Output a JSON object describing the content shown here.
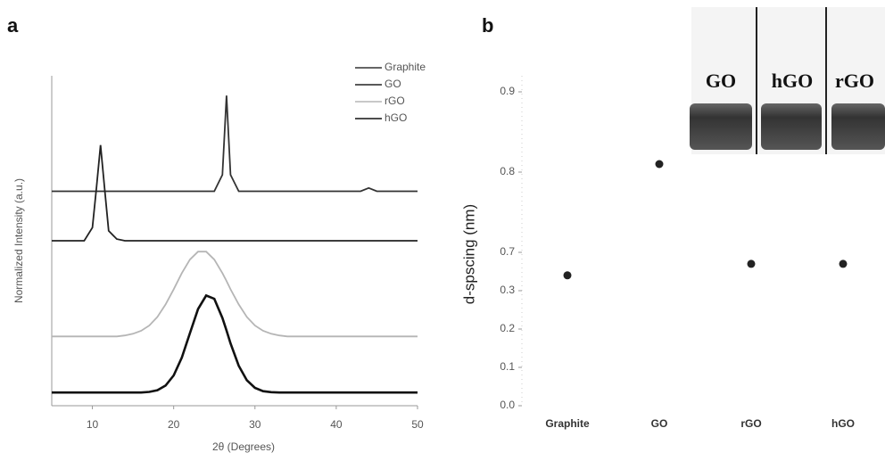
{
  "chart_data": [
    {
      "type": "line",
      "panel_label": "a",
      "xlabel": "2θ (Degrees)",
      "ylabel": "Normalized Intensity (a.u.)",
      "x": [
        5,
        6,
        7,
        8,
        9,
        10,
        10.5,
        11,
        11.5,
        12,
        13,
        14,
        15,
        16,
        17,
        18,
        19,
        20,
        21,
        22,
        23,
        24,
        25,
        26,
        26.5,
        27,
        28,
        29,
        30,
        31,
        32,
        33,
        34,
        35,
        36,
        37,
        38,
        39,
        40,
        41,
        42,
        43,
        44,
        45,
        46,
        47,
        48,
        49,
        50
      ],
      "xlim": [
        5,
        50
      ],
      "xticks": [
        10,
        20,
        30,
        40,
        50
      ],
      "ylim": [
        0,
        10
      ],
      "legend": "upper right",
      "series": [
        {
          "name": "Graphite",
          "color": "#333333",
          "values": [
            6.5,
            6.5,
            6.5,
            6.5,
            6.5,
            6.5,
            6.5,
            6.5,
            6.5,
            6.5,
            6.5,
            6.5,
            6.5,
            6.5,
            6.5,
            6.5,
            6.5,
            6.5,
            6.5,
            6.5,
            6.5,
            6.5,
            6.5,
            7.0,
            9.4,
            7.0,
            6.5,
            6.5,
            6.5,
            6.5,
            6.5,
            6.5,
            6.5,
            6.5,
            6.5,
            6.5,
            6.5,
            6.5,
            6.5,
            6.5,
            6.5,
            6.5,
            6.6,
            6.5,
            6.5,
            6.5,
            6.5,
            6.5,
            6.5
          ]
        },
        {
          "name": "GO",
          "color": "#222222",
          "values": [
            5.0,
            5.0,
            5.0,
            5.0,
            5.0,
            5.4,
            6.6,
            7.9,
            6.6,
            5.3,
            5.05,
            5.0,
            5.0,
            5.0,
            5.0,
            5.0,
            5.0,
            5.0,
            5.0,
            5.0,
            5.0,
            5.0,
            5.0,
            5.0,
            5.0,
            5.0,
            5.0,
            5.0,
            5.0,
            5.0,
            5.0,
            5.0,
            5.0,
            5.0,
            5.0,
            5.0,
            5.0,
            5.0,
            5.0,
            5.0,
            5.0,
            5.0,
            5.0,
            5.0,
            5.0,
            5.0,
            5.0,
            5.0,
            5.0
          ]
        },
        {
          "name": "rGO",
          "color": "#b5b5b5",
          "values": [
            2.1,
            2.1,
            2.1,
            2.1,
            2.1,
            2.1,
            2.1,
            2.1,
            2.1,
            2.1,
            2.1,
            2.13,
            2.18,
            2.27,
            2.43,
            2.69,
            3.07,
            3.53,
            4.02,
            4.43,
            4.67,
            4.67,
            4.43,
            4.02,
            3.78,
            3.53,
            3.07,
            2.69,
            2.43,
            2.27,
            2.18,
            2.13,
            2.1,
            2.1,
            2.1,
            2.1,
            2.1,
            2.1,
            2.1,
            2.1,
            2.1,
            2.1,
            2.1,
            2.1,
            2.1,
            2.1,
            2.1,
            2.1,
            2.1
          ]
        },
        {
          "name": "hGO",
          "color": "#111111",
          "values": [
            0.4,
            0.4,
            0.4,
            0.4,
            0.4,
            0.4,
            0.4,
            0.4,
            0.4,
            0.4,
            0.4,
            0.4,
            0.4,
            0.4,
            0.42,
            0.47,
            0.61,
            0.92,
            1.46,
            2.2,
            2.93,
            3.34,
            3.24,
            2.66,
            2.28,
            1.89,
            1.21,
            0.77,
            0.54,
            0.44,
            0.41,
            0.4,
            0.4,
            0.4,
            0.4,
            0.4,
            0.4,
            0.4,
            0.4,
            0.4,
            0.4,
            0.4,
            0.4,
            0.4,
            0.4,
            0.4,
            0.4,
            0.4,
            0.4
          ]
        }
      ]
    },
    {
      "type": "scatter",
      "panel_label": "b",
      "ylabel": "d-spscing (nm)",
      "categories": [
        "Graphite",
        "GO",
        "rGO",
        "hGO"
      ],
      "values": [
        0.34,
        0.81,
        0.37,
        0.37
      ],
      "color": "#222222",
      "ylim": [
        0,
        0.92
      ],
      "yticks": [
        {
          "value": 0,
          "label": "0.0"
        },
        0.1,
        0.2,
        0.3,
        0.7,
        0.8,
        0.9
      ],
      "annotations": [
        "GO",
        "hGO",
        "rGO"
      ]
    }
  ]
}
